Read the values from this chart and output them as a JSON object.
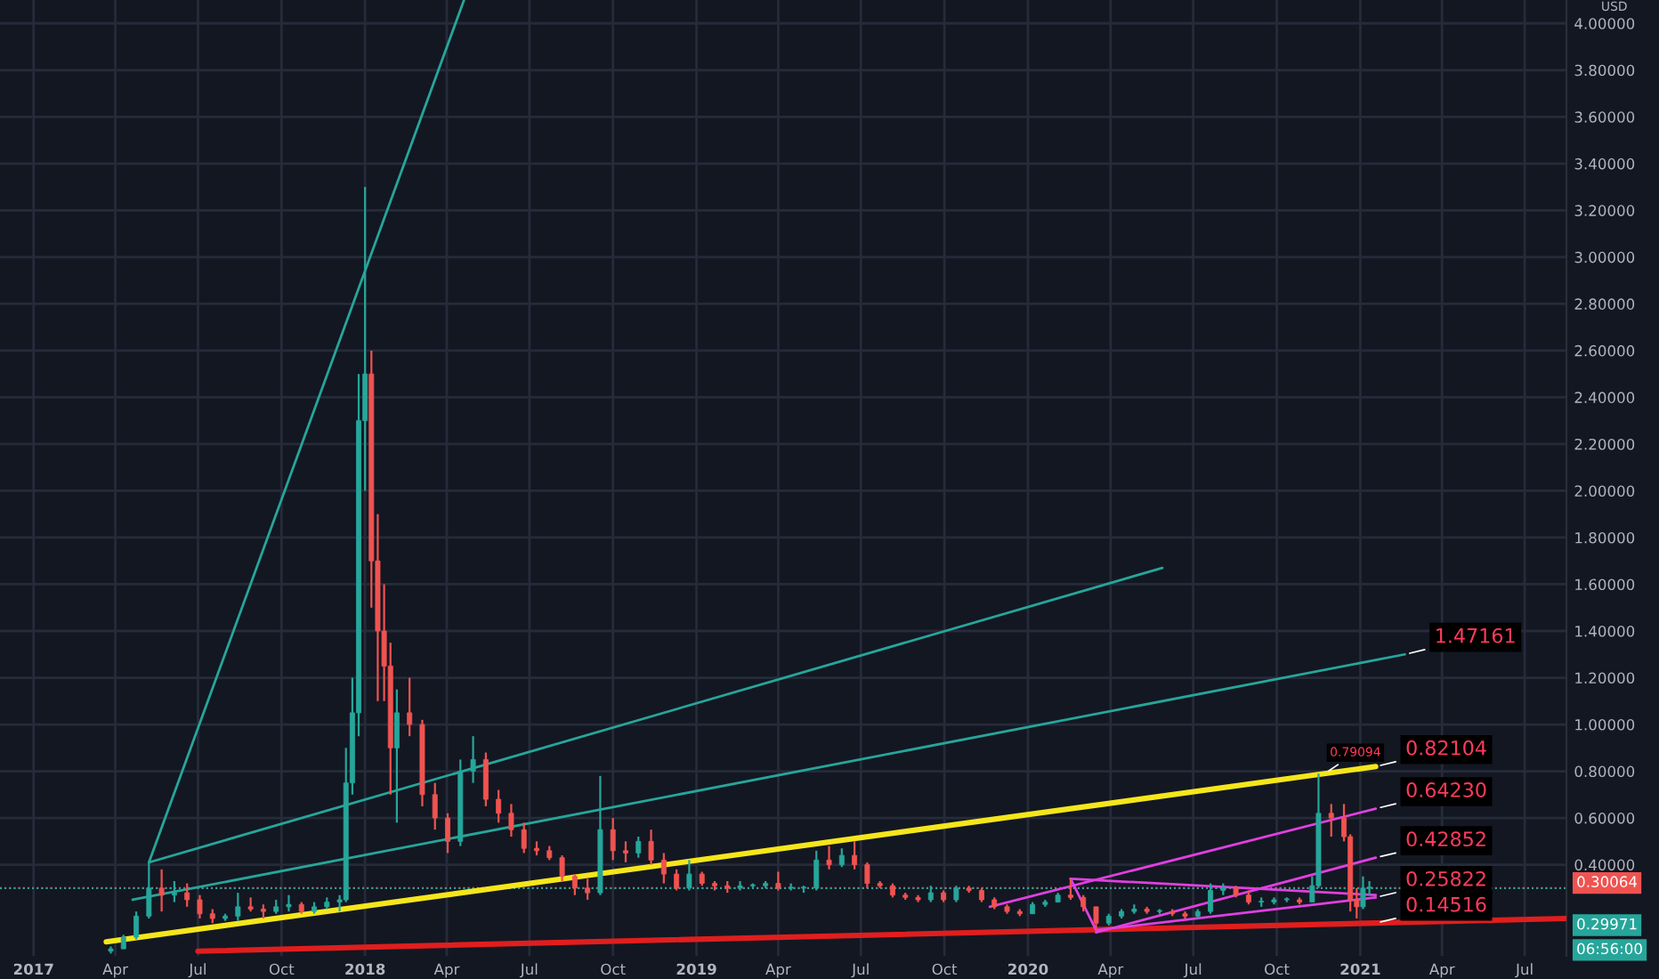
{
  "chart_data": {
    "type": "candlestick",
    "x": [
      "2017-03-27",
      "2017-04-10",
      "2017-04-24",
      "2017-05-08",
      "2017-05-22",
      "2017-06-05",
      "2017-06-19",
      "2017-07-03",
      "2017-07-17",
      "2017-07-31",
      "2017-08-14",
      "2017-08-28",
      "2017-09-11",
      "2017-09-25",
      "2017-10-09",
      "2017-10-23",
      "2017-11-06",
      "2017-11-20",
      "2017-12-04",
      "2017-12-11",
      "2017-12-18",
      "2017-12-25",
      "2018-01-01",
      "2018-01-08",
      "2018-01-15",
      "2018-01-22",
      "2018-01-29",
      "2018-02-05",
      "2018-02-19",
      "2018-03-05",
      "2018-03-19",
      "2018-04-02",
      "2018-04-16",
      "2018-04-30",
      "2018-05-14",
      "2018-05-28",
      "2018-06-11",
      "2018-06-25",
      "2018-07-09",
      "2018-07-23",
      "2018-08-06",
      "2018-08-20",
      "2018-09-03",
      "2018-09-17",
      "2018-10-01",
      "2018-10-15",
      "2018-10-29",
      "2018-11-12",
      "2018-11-26",
      "2018-12-10",
      "2018-12-24",
      "2019-01-07",
      "2019-01-21",
      "2019-02-04",
      "2019-02-18",
      "2019-03-04",
      "2019-03-18",
      "2019-04-01",
      "2019-04-15",
      "2019-04-29",
      "2019-05-13",
      "2019-05-27",
      "2019-06-10",
      "2019-06-24",
      "2019-07-08",
      "2019-07-22",
      "2019-08-05",
      "2019-08-19",
      "2019-09-02",
      "2019-09-16",
      "2019-09-30",
      "2019-10-14",
      "2019-10-28",
      "2019-11-11",
      "2019-11-25",
      "2019-12-09",
      "2019-12-23",
      "2020-01-06",
      "2020-01-20",
      "2020-02-03",
      "2020-02-17",
      "2020-03-02",
      "2020-03-16",
      "2020-03-30",
      "2020-04-13",
      "2020-04-27",
      "2020-05-11",
      "2020-05-25",
      "2020-06-08",
      "2020-06-22",
      "2020-07-06",
      "2020-07-20",
      "2020-08-03",
      "2020-08-17",
      "2020-08-31",
      "2020-09-14",
      "2020-09-28",
      "2020-10-12",
      "2020-10-26",
      "2020-11-09",
      "2020-11-16",
      "2020-11-30",
      "2020-12-14",
      "2020-12-21",
      "2020-12-28",
      "2021-01-04",
      "2021-01-11"
    ],
    "ohlc": [
      [
        0.03,
        0.05,
        0.02,
        0.04
      ],
      [
        0.04,
        0.1,
        0.04,
        0.09
      ],
      [
        0.09,
        0.2,
        0.08,
        0.18
      ],
      [
        0.18,
        0.41,
        0.17,
        0.3
      ],
      [
        0.3,
        0.38,
        0.2,
        0.27
      ],
      [
        0.27,
        0.33,
        0.24,
        0.28
      ],
      [
        0.28,
        0.32,
        0.22,
        0.25
      ],
      [
        0.25,
        0.27,
        0.17,
        0.19
      ],
      [
        0.19,
        0.21,
        0.15,
        0.17
      ],
      [
        0.17,
        0.19,
        0.16,
        0.18
      ],
      [
        0.18,
        0.28,
        0.16,
        0.22
      ],
      [
        0.22,
        0.26,
        0.2,
        0.21
      ],
      [
        0.21,
        0.23,
        0.17,
        0.2
      ],
      [
        0.2,
        0.25,
        0.19,
        0.22
      ],
      [
        0.22,
        0.27,
        0.2,
        0.23
      ],
      [
        0.23,
        0.24,
        0.19,
        0.2
      ],
      [
        0.2,
        0.24,
        0.19,
        0.22
      ],
      [
        0.22,
        0.26,
        0.21,
        0.24
      ],
      [
        0.24,
        0.27,
        0.2,
        0.25
      ],
      [
        0.25,
        0.9,
        0.24,
        0.75
      ],
      [
        0.75,
        1.2,
        0.7,
        1.05
      ],
      [
        1.05,
        2.5,
        0.95,
        2.3
      ],
      [
        2.3,
        3.3,
        2.0,
        2.5
      ],
      [
        2.5,
        2.6,
        1.5,
        1.7
      ],
      [
        1.7,
        1.9,
        1.1,
        1.4
      ],
      [
        1.4,
        1.6,
        1.1,
        1.25
      ],
      [
        1.25,
        1.35,
        0.7,
        0.9
      ],
      [
        0.9,
        1.15,
        0.58,
        1.05
      ],
      [
        1.05,
        1.2,
        0.95,
        1.0
      ],
      [
        1.0,
        1.02,
        0.65,
        0.7
      ],
      [
        0.7,
        0.75,
        0.55,
        0.6
      ],
      [
        0.6,
        0.62,
        0.45,
        0.5
      ],
      [
        0.5,
        0.85,
        0.48,
        0.8
      ],
      [
        0.8,
        0.95,
        0.75,
        0.85
      ],
      [
        0.85,
        0.88,
        0.65,
        0.68
      ],
      [
        0.68,
        0.72,
        0.58,
        0.62
      ],
      [
        0.62,
        0.66,
        0.52,
        0.55
      ],
      [
        0.55,
        0.58,
        0.45,
        0.47
      ],
      [
        0.47,
        0.5,
        0.44,
        0.46
      ],
      [
        0.46,
        0.48,
        0.42,
        0.43
      ],
      [
        0.43,
        0.44,
        0.33,
        0.35
      ],
      [
        0.35,
        0.36,
        0.27,
        0.3
      ],
      [
        0.3,
        0.34,
        0.25,
        0.28
      ],
      [
        0.28,
        0.78,
        0.27,
        0.55
      ],
      [
        0.55,
        0.6,
        0.42,
        0.46
      ],
      [
        0.46,
        0.5,
        0.41,
        0.45
      ],
      [
        0.45,
        0.52,
        0.43,
        0.5
      ],
      [
        0.5,
        0.55,
        0.4,
        0.42
      ],
      [
        0.42,
        0.45,
        0.32,
        0.36
      ],
      [
        0.36,
        0.38,
        0.29,
        0.3
      ],
      [
        0.3,
        0.42,
        0.29,
        0.36
      ],
      [
        0.36,
        0.37,
        0.31,
        0.32
      ],
      [
        0.32,
        0.33,
        0.29,
        0.31
      ],
      [
        0.31,
        0.33,
        0.28,
        0.3
      ],
      [
        0.3,
        0.33,
        0.29,
        0.31
      ],
      [
        0.31,
        0.32,
        0.3,
        0.31
      ],
      [
        0.31,
        0.33,
        0.3,
        0.32
      ],
      [
        0.32,
        0.37,
        0.29,
        0.3
      ],
      [
        0.3,
        0.32,
        0.29,
        0.3
      ],
      [
        0.3,
        0.31,
        0.28,
        0.3
      ],
      [
        0.3,
        0.46,
        0.29,
        0.42
      ],
      [
        0.42,
        0.48,
        0.38,
        0.4
      ],
      [
        0.4,
        0.47,
        0.39,
        0.44
      ],
      [
        0.44,
        0.5,
        0.38,
        0.4
      ],
      [
        0.4,
        0.41,
        0.3,
        0.32
      ],
      [
        0.32,
        0.33,
        0.3,
        0.31
      ],
      [
        0.31,
        0.32,
        0.26,
        0.27
      ],
      [
        0.27,
        0.28,
        0.25,
        0.26
      ],
      [
        0.26,
        0.27,
        0.24,
        0.25
      ],
      [
        0.25,
        0.31,
        0.24,
        0.28
      ],
      [
        0.28,
        0.29,
        0.24,
        0.25
      ],
      [
        0.25,
        0.31,
        0.24,
        0.3
      ],
      [
        0.3,
        0.31,
        0.28,
        0.29
      ],
      [
        0.29,
        0.3,
        0.24,
        0.25
      ],
      [
        0.25,
        0.26,
        0.21,
        0.22
      ],
      [
        0.22,
        0.23,
        0.19,
        0.2
      ],
      [
        0.2,
        0.21,
        0.18,
        0.19
      ],
      [
        0.19,
        0.24,
        0.19,
        0.23
      ],
      [
        0.23,
        0.25,
        0.22,
        0.24
      ],
      [
        0.24,
        0.28,
        0.24,
        0.27
      ],
      [
        0.27,
        0.34,
        0.25,
        0.26
      ],
      [
        0.26,
        0.27,
        0.2,
        0.22
      ],
      [
        0.22,
        0.22,
        0.12,
        0.15
      ],
      [
        0.15,
        0.19,
        0.14,
        0.18
      ],
      [
        0.18,
        0.21,
        0.17,
        0.2
      ],
      [
        0.2,
        0.23,
        0.19,
        0.21
      ],
      [
        0.21,
        0.22,
        0.19,
        0.2
      ],
      [
        0.2,
        0.21,
        0.19,
        0.2
      ],
      [
        0.2,
        0.21,
        0.18,
        0.19
      ],
      [
        0.19,
        0.2,
        0.17,
        0.18
      ],
      [
        0.18,
        0.21,
        0.17,
        0.2
      ],
      [
        0.2,
        0.32,
        0.19,
        0.29
      ],
      [
        0.29,
        0.32,
        0.27,
        0.3
      ],
      [
        0.3,
        0.31,
        0.26,
        0.27
      ],
      [
        0.27,
        0.29,
        0.23,
        0.24
      ],
      [
        0.24,
        0.26,
        0.22,
        0.24
      ],
      [
        0.24,
        0.26,
        0.23,
        0.25
      ],
      [
        0.25,
        0.26,
        0.24,
        0.25
      ],
      [
        0.25,
        0.26,
        0.23,
        0.24
      ],
      [
        0.24,
        0.35,
        0.24,
        0.31
      ],
      [
        0.31,
        0.79,
        0.3,
        0.62
      ],
      [
        0.62,
        0.66,
        0.52,
        0.6
      ],
      [
        0.6,
        0.66,
        0.5,
        0.52
      ],
      [
        0.52,
        0.53,
        0.2,
        0.25
      ],
      [
        0.25,
        0.3,
        0.17,
        0.22
      ],
      [
        0.22,
        0.35,
        0.21,
        0.3
      ],
      [
        0.3,
        0.33,
        0.27,
        0.3
      ]
    ],
    "colors": [
      "#26a69a",
      "#26a69a",
      "#26a69a",
      "#26a69a",
      "#ef5350",
      "#26a69a",
      "#ef5350",
      "#ef5350",
      "#ef5350",
      "#26a69a",
      "#26a69a",
      "#ef5350",
      "#ef5350",
      "#26a69a",
      "#26a69a",
      "#ef5350",
      "#26a69a",
      "#26a69a",
      "#26a69a",
      "#26a69a",
      "#26a69a",
      "#26a69a",
      "#26a69a",
      "#ef5350",
      "#ef5350",
      "#ef5350",
      "#ef5350",
      "#26a69a",
      "#ef5350",
      "#ef5350",
      "#ef5350",
      "#ef5350",
      "#26a69a",
      "#26a69a",
      "#ef5350",
      "#ef5350",
      "#ef5350",
      "#ef5350",
      "#ef5350",
      "#ef5350",
      "#ef5350",
      "#ef5350",
      "#ef5350",
      "#26a69a",
      "#ef5350",
      "#ef5350",
      "#26a69a",
      "#ef5350",
      "#ef5350",
      "#ef5350",
      "#26a69a",
      "#ef5350",
      "#ef5350",
      "#ef5350",
      "#26a69a",
      "#26a69a",
      "#26a69a",
      "#ef5350",
      "#26a69a",
      "#26a69a",
      "#26a69a",
      "#ef5350",
      "#26a69a",
      "#ef5350",
      "#ef5350",
      "#ef5350",
      "#ef5350",
      "#ef5350",
      "#ef5350",
      "#26a69a",
      "#ef5350",
      "#26a69a",
      "#ef5350",
      "#ef5350",
      "#ef5350",
      "#ef5350",
      "#ef5350",
      "#26a69a",
      "#26a69a",
      "#26a69a",
      "#ef5350",
      "#ef5350",
      "#ef5350",
      "#26a69a",
      "#26a69a",
      "#26a69a",
      "#ef5350",
      "#26a69a",
      "#ef5350",
      "#ef5350",
      "#26a69a",
      "#26a69a",
      "#26a69a",
      "#ef5350",
      "#ef5350",
      "#26a69a",
      "#26a69a",
      "#26a69a",
      "#ef5350",
      "#26a69a",
      "#26a69a",
      "#ef5350",
      "#ef5350",
      "#ef5350",
      "#ef5350",
      "#26a69a",
      "#26a69a"
    ],
    "series": [
      {
        "type": "line",
        "color": "#26a69a",
        "x": [
          "2017-05-08",
          "2018-04-20"
        ],
        "values": [
          0.41,
          4.1
        ]
      },
      {
        "type": "line",
        "color": "#26a69a",
        "x": [
          "2017-05-08",
          "2020-05-28"
        ],
        "values": [
          0.41,
          1.67
        ]
      },
      {
        "type": "line",
        "color": "#26a69a",
        "x": [
          "2017-04-20",
          "2021-02-19"
        ],
        "values": [
          0.25,
          1.3
        ]
      },
      {
        "type": "line",
        "color": "#f5e61b",
        "x": [
          "2017-03-22",
          "2021-01-18"
        ],
        "values": [
          0.07,
          0.82
        ]
      },
      {
        "type": "line",
        "color": "#e01e1e",
        "x": [
          "2017-07-01",
          "2021-08-16"
        ],
        "values": [
          0.03,
          0.17
        ]
      },
      {
        "type": "line",
        "color": "#e040e0",
        "x": [
          "2019-11-20",
          "2021-01-18"
        ],
        "values": [
          0.22,
          0.64
        ]
      },
      {
        "type": "line",
        "color": "#e040e0",
        "x": [
          "2020-03-16",
          "2021-01-18"
        ],
        "values": [
          0.11,
          0.43
        ]
      },
      {
        "type": "line",
        "color": "#e040e0",
        "x": [
          "2020-03-16",
          "2021-01-18"
        ],
        "values": [
          0.12,
          0.26
        ]
      },
      {
        "type": "line",
        "color": "#e040e0",
        "x": [
          "2020-02-17",
          "2021-01-18"
        ],
        "values": [
          0.34,
          0.27
        ]
      },
      {
        "type": "line",
        "color": "#e040e0",
        "x": [
          "2020-02-17",
          "2020-03-16"
        ],
        "values": [
          0.34,
          0.12
        ]
      }
    ],
    "annotations": [
      {
        "text": "1.47161",
        "x": "2021-02-19",
        "y": 1.3
      },
      {
        "text": "0.82104",
        "x": "2021-01-18",
        "y": 0.82
      },
      {
        "text": "0.64230",
        "x": "2021-01-18",
        "y": 0.64
      },
      {
        "text": "0.42852",
        "x": "2021-01-18",
        "y": 0.43
      },
      {
        "text": "0.25822",
        "x": "2021-01-18",
        "y": 0.26
      },
      {
        "text": "0.14516",
        "x": "2021-01-18",
        "y": 0.15
      },
      {
        "text": "0.79094",
        "x": "2020-11-23",
        "y": 0.79
      },
      "USD",
      "06:56:00"
    ],
    "ref_lines": [
      {
        "axis": "y",
        "value": 0.30064,
        "label": "0.30064",
        "color": "#ef5350",
        "line_style": "dotted"
      },
      {
        "axis": "y",
        "value": 0.29971,
        "label": "0.29971",
        "color": "#26a69a",
        "line_style": "dotted"
      }
    ],
    "xlim": [
      "2016-11-25",
      "2021-08-16"
    ],
    "xticks": [
      {
        "value": "2017-01-01",
        "label": "2017"
      },
      {
        "value": "2017-04-01",
        "label": "Apr"
      },
      {
        "value": "2017-07-01",
        "label": "Jul"
      },
      {
        "value": "2017-10-01",
        "label": "Oct"
      },
      {
        "value": "2018-01-01",
        "label": "2018"
      },
      {
        "value": "2018-04-01",
        "label": "Apr"
      },
      {
        "value": "2018-07-01",
        "label": "Jul"
      },
      {
        "value": "2018-10-01",
        "label": "Oct"
      },
      {
        "value": "2019-01-01",
        "label": "2019"
      },
      {
        "value": "2019-04-01",
        "label": "Apr"
      },
      {
        "value": "2019-07-01",
        "label": "Jul"
      },
      {
        "value": "2019-10-01",
        "label": "Oct"
      },
      {
        "value": "2020-01-01",
        "label": "2020"
      },
      {
        "value": "2020-04-01",
        "label": "Apr"
      },
      {
        "value": "2020-07-01",
        "label": "Jul"
      },
      {
        "value": "2020-10-01",
        "label": "Oct"
      },
      {
        "value": "2021-01-01",
        "label": "2021"
      },
      {
        "value": "2021-04-01",
        "label": "Apr"
      },
      {
        "value": "2021-07-01",
        "label": "Jul"
      }
    ],
    "ylim": [
      0.01,
      4.1
    ],
    "yticks": [
      {
        "value": 0.4,
        "label": "0.40000"
      },
      {
        "value": 0.6,
        "label": "0.60000"
      },
      {
        "value": 0.8,
        "label": "0.80000"
      },
      {
        "value": 1.0,
        "label": "1.00000"
      },
      {
        "value": 1.2,
        "label": "1.20000"
      },
      {
        "value": 1.4,
        "label": "1.40000"
      },
      {
        "value": 1.6,
        "label": "1.60000"
      },
      {
        "value": 1.8,
        "label": "1.80000"
      },
      {
        "value": 2.0,
        "label": "2.00000"
      },
      {
        "value": 2.2,
        "label": "2.20000"
      },
      {
        "value": 2.4,
        "label": "2.40000"
      },
      {
        "value": 2.6,
        "label": "2.60000"
      },
      {
        "value": 2.8,
        "label": "2.80000"
      },
      {
        "value": 3.0,
        "label": "3.00000"
      },
      {
        "value": 3.2,
        "label": "3.20000"
      },
      {
        "value": 3.4,
        "label": "3.40000"
      },
      {
        "value": 3.6,
        "label": "3.60000"
      },
      {
        "value": 3.8,
        "label": "3.80000"
      },
      {
        "value": 4.0,
        "label": "4.00000"
      }
    ],
    "grid": true,
    "legend": false
  }
}
